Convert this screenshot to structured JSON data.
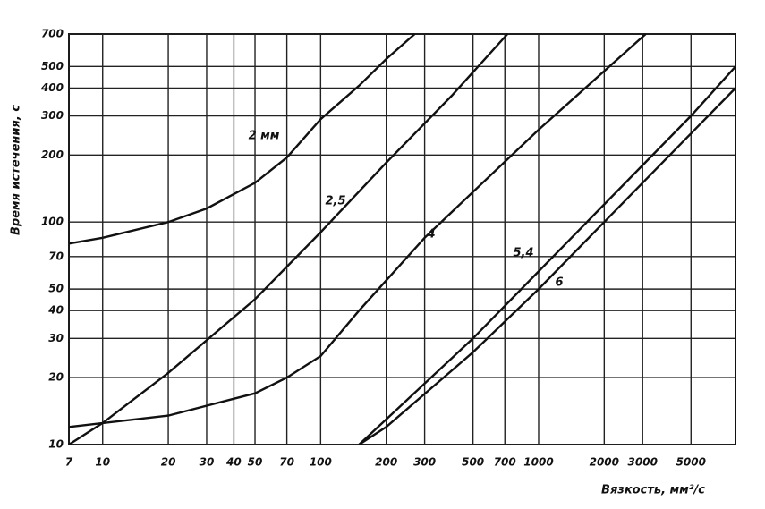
{
  "chart_data": {
    "type": "line",
    "x_label": "Вязкость, мм²/с",
    "y_label": "Время истечения, с",
    "log_x": true,
    "log_y": true,
    "grid": true,
    "xlim": [
      7,
      8000
    ],
    "ylim": [
      10,
      700
    ],
    "xticks": [
      7,
      10,
      20,
      30,
      40,
      50,
      70,
      100,
      200,
      300,
      500,
      700,
      1000,
      2000,
      3000,
      5000
    ],
    "yticks": [
      10,
      20,
      30,
      40,
      50,
      70,
      100,
      200,
      300,
      400,
      500,
      700
    ],
    "series": [
      {
        "name": "2 мм",
        "color": "#111111",
        "x": [
          7,
          10,
          20,
          30,
          50,
          70,
          100,
          150,
          200,
          270
        ],
        "values": [
          80,
          85,
          100,
          115,
          150,
          195,
          290,
          410,
          540,
          700
        ]
      },
      {
        "name": "2,5",
        "color": "#111111",
        "x": [
          7,
          10,
          20,
          50,
          100,
          200,
          400,
          720
        ],
        "values": [
          10,
          12.5,
          21,
          45,
          90,
          185,
          370,
          700
        ]
      },
      {
        "name": "4",
        "color": "#111111",
        "x": [
          7,
          20,
          50,
          70,
          100,
          150,
          300,
          1000,
          3100
        ],
        "values": [
          12,
          13.5,
          17,
          20,
          25,
          40,
          85,
          260,
          700
        ]
      },
      {
        "name": "5,4",
        "color": "#111111",
        "x": [
          150,
          200,
          500,
          1000,
          2000,
          5000,
          8000
        ],
        "values": [
          10,
          13,
          30,
          60,
          120,
          300,
          500
        ]
      },
      {
        "name": "6",
        "color": "#111111",
        "x": [
          150,
          200,
          500,
          1000,
          2000,
          5000,
          8000
        ],
        "values": [
          10,
          12,
          26,
          50,
          100,
          250,
          400
        ]
      }
    ]
  }
}
